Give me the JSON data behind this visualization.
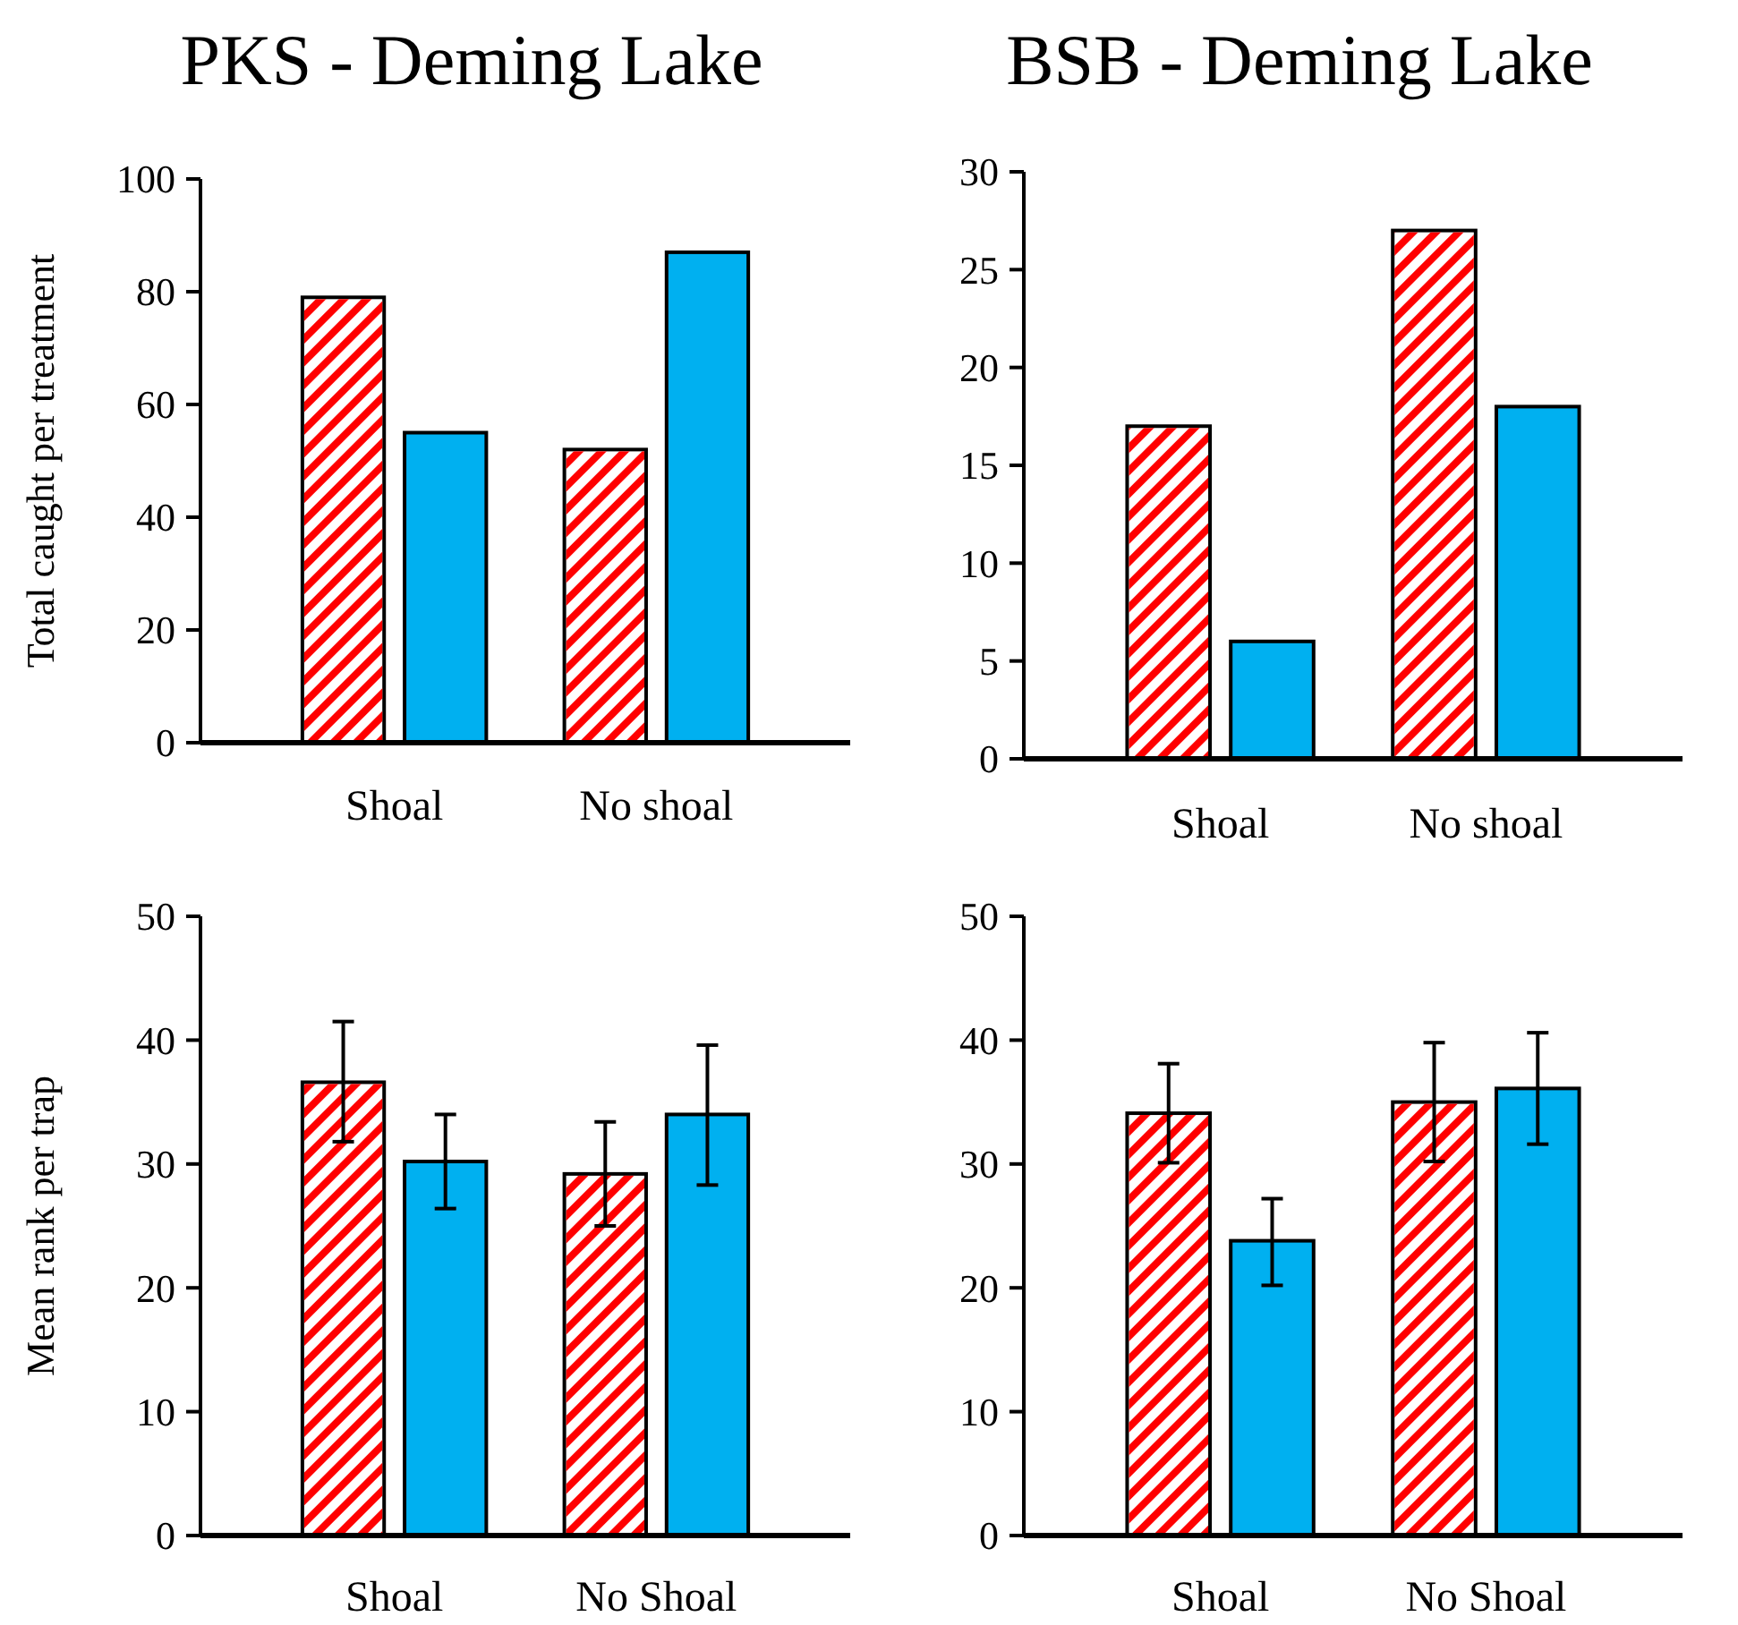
{
  "chart_data": [
    {
      "type": "bar",
      "title": "PKS - Deming Lake",
      "ylabel": "Total caught per treatment",
      "categories": [
        "Shoal",
        "No shoal"
      ],
      "ylim": [
        0,
        100
      ],
      "yticks": [
        0,
        20,
        40,
        60,
        80,
        100
      ],
      "series": [
        {
          "color": "#ff0000",
          "values": [
            79,
            52
          ]
        },
        {
          "color": "#00b0f0",
          "values": [
            55,
            87
          ]
        }
      ]
    },
    {
      "type": "bar",
      "title": "BSB - Deming Lake",
      "categories": [
        "Shoal",
        "No shoal"
      ],
      "ylim": [
        0,
        30
      ],
      "yticks": [
        0,
        5,
        10,
        15,
        20,
        25,
        30
      ],
      "series": [
        {
          "color": "#ff0000",
          "values": [
            17,
            27
          ]
        },
        {
          "color": "#00b0f0",
          "values": [
            6,
            18
          ]
        }
      ]
    },
    {
      "type": "bar",
      "ylabel": "Mean rank per trap",
      "categories": [
        "Shoal",
        "No Shoal"
      ],
      "ylim": [
        0,
        50
      ],
      "yticks": [
        0,
        10,
        20,
        30,
        40,
        50
      ],
      "series": [
        {
          "color": "#ff0000",
          "values": [
            36.6,
            29.2
          ],
          "errors": [
            [
              31.8,
              41.5
            ],
            [
              25.0,
              33.4
            ]
          ]
        },
        {
          "color": "#00b0f0",
          "values": [
            30.2,
            34.0
          ],
          "errors": [
            [
              26.4,
              34.0
            ],
            [
              28.3,
              39.6
            ]
          ]
        }
      ]
    },
    {
      "type": "bar",
      "categories": [
        "Shoal",
        "No Shoal"
      ],
      "ylim": [
        0,
        50
      ],
      "yticks": [
        0,
        10,
        20,
        30,
        40,
        50
      ],
      "series": [
        {
          "color": "#ff0000",
          "values": [
            34.1,
            35.0
          ],
          "errors": [
            [
              30.1,
              38.1
            ],
            [
              30.2,
              39.8
            ]
          ]
        },
        {
          "color": "#00b0f0",
          "values": [
            23.8,
            36.1
          ],
          "errors": [
            [
              20.2,
              27.2
            ],
            [
              31.6,
              40.6
            ]
          ]
        }
      ]
    }
  ]
}
